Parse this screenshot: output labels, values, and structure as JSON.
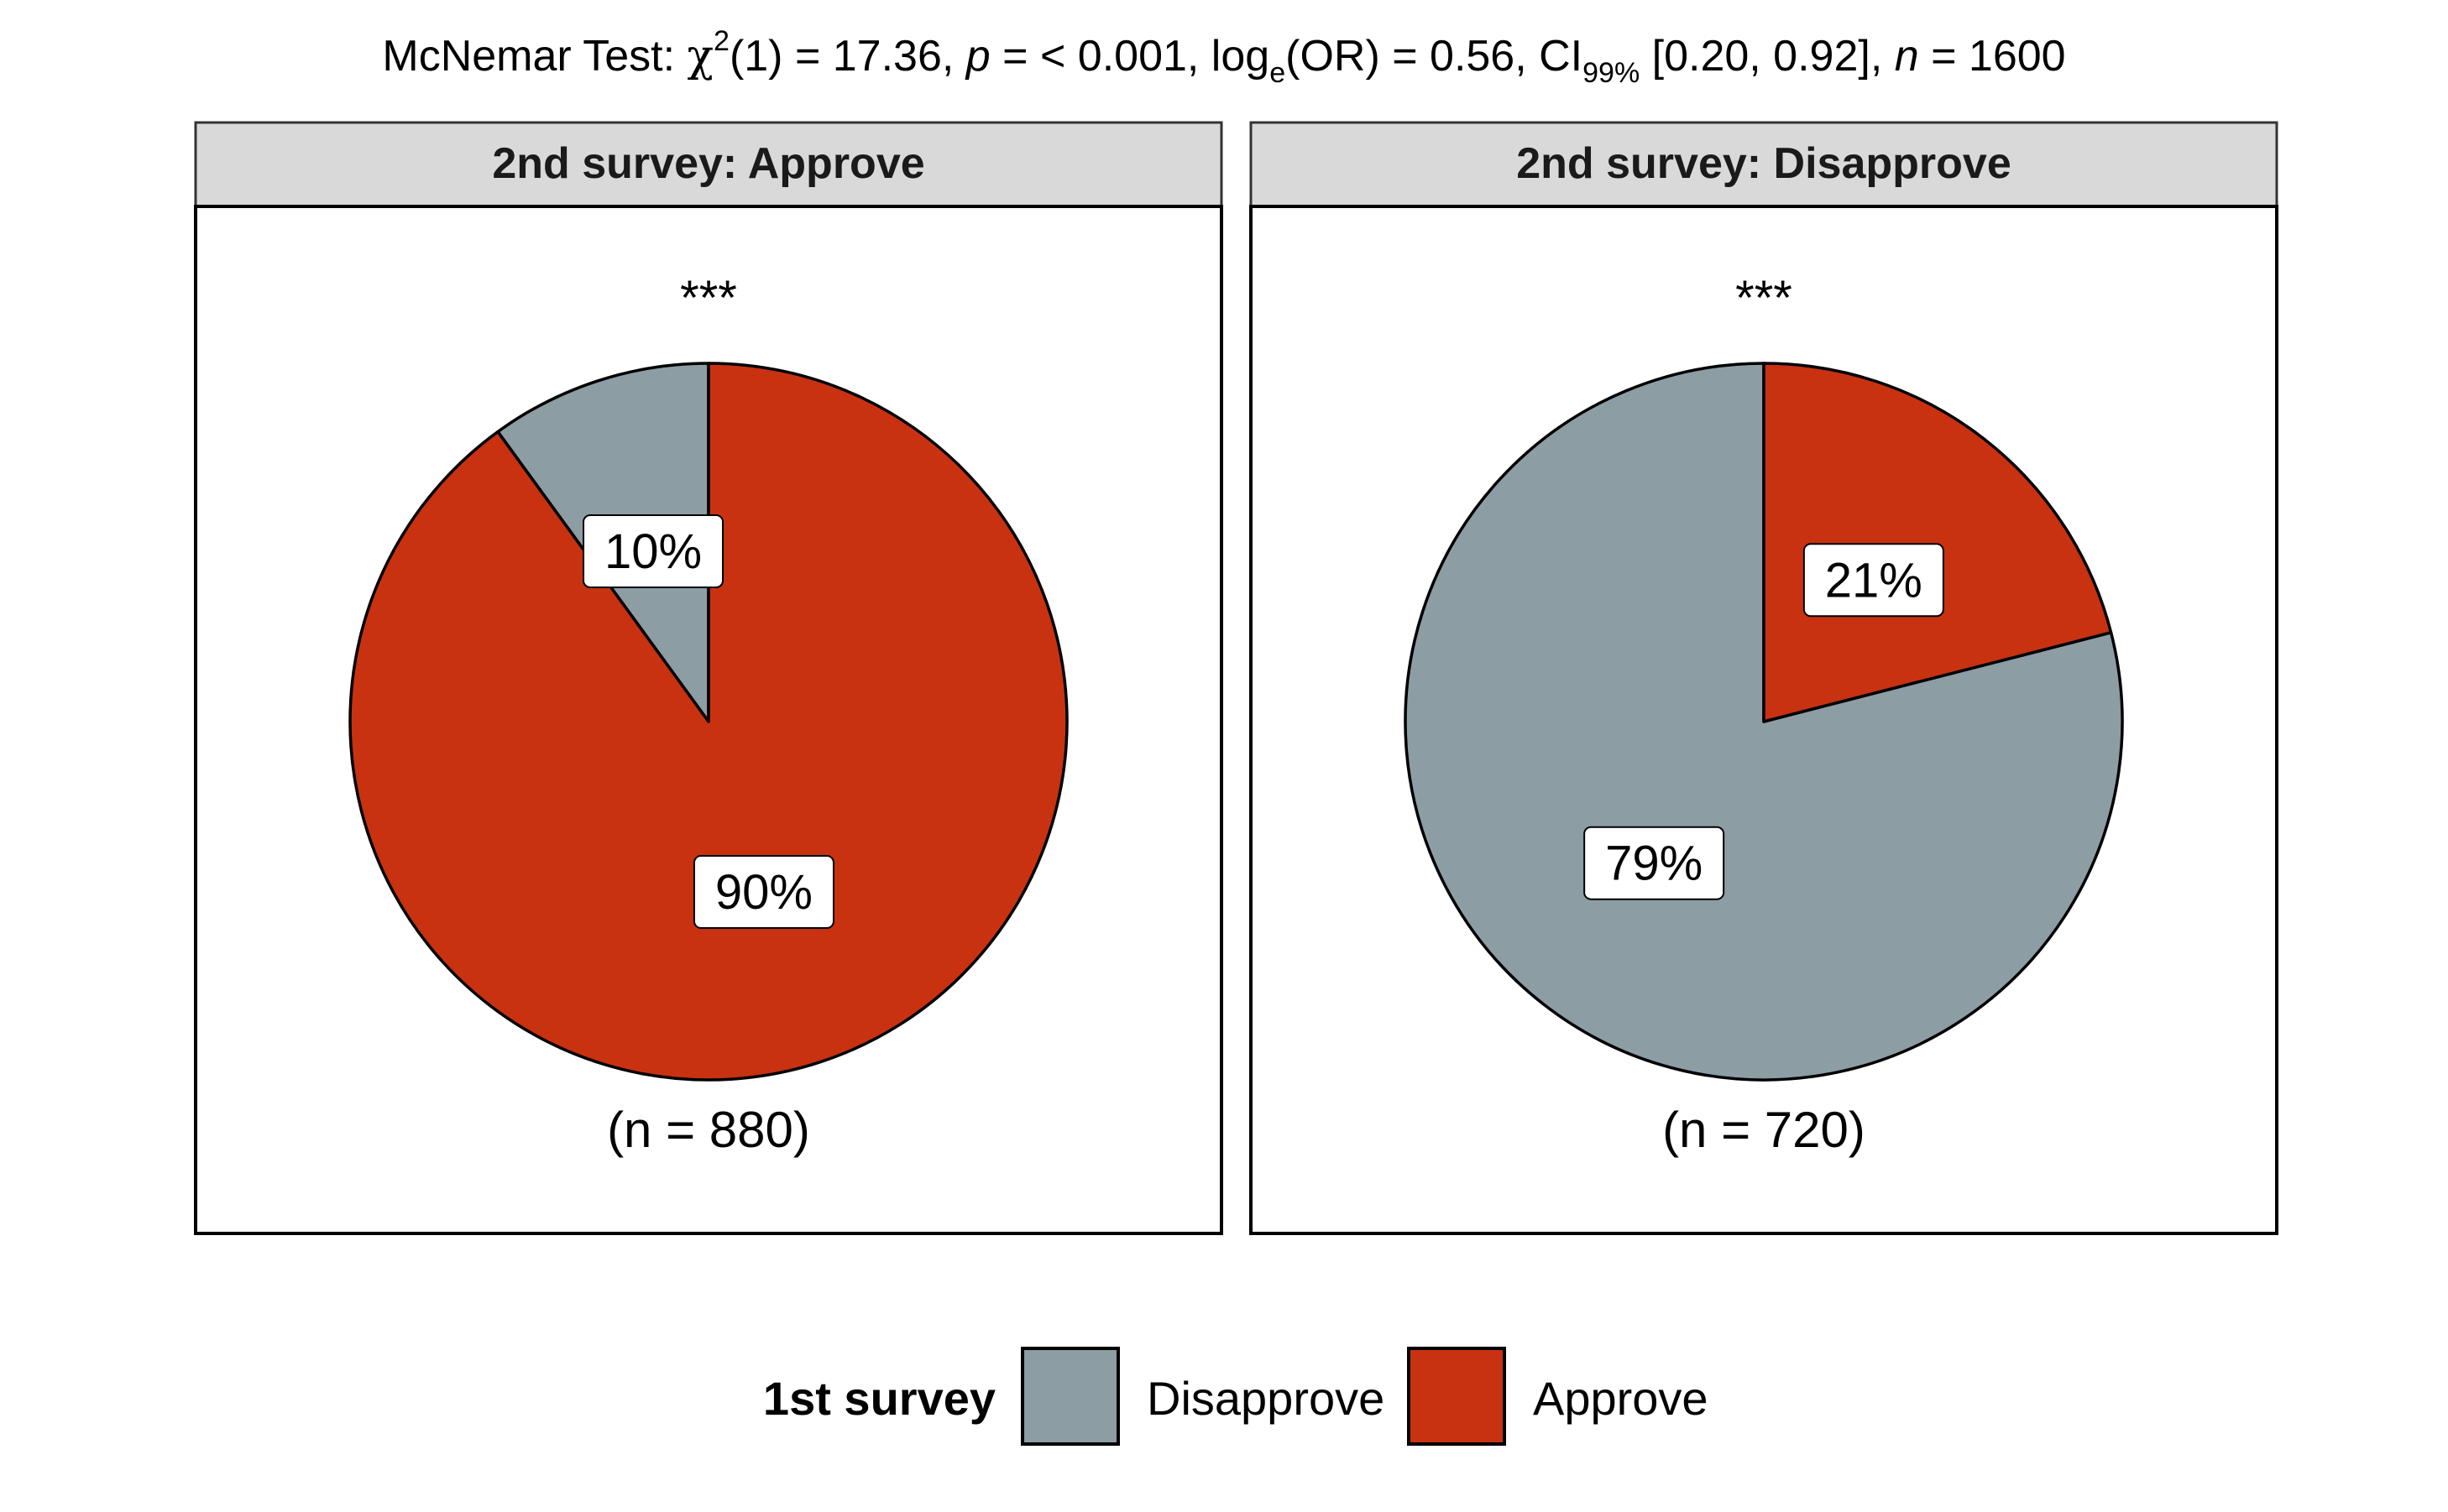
{
  "subtitle": {
    "prefix": "McNemar Test: ",
    "chi": "χ",
    "chi_sup": "2",
    "df_part": "(1) = 17.36, ",
    "p_label": "p",
    "p_part": " = < 0.001, log",
    "log_sub": "e",
    "or_part": "(OR) = 0.56, CI",
    "ci_sub": "99%",
    "ci_part": " [0.20, 0.92], ",
    "n_label": "n",
    "n_part": " = 1600"
  },
  "colors": {
    "Disapprove": "#8C9DA4",
    "Approve": "#C83210",
    "strip": "#D9D9D9"
  },
  "chart_data": {
    "type": "pie",
    "facet_variable": "2nd survey",
    "legend": {
      "title": "1st survey",
      "position": "bottom",
      "entries": [
        "Disapprove",
        "Approve"
      ]
    },
    "panels": [
      {
        "strip_label": "2nd survey: Approve",
        "significance": "***",
        "n_label": "(n = 880)",
        "slices": [
          {
            "category": "Disapprove",
            "value": 10,
            "label": "10%"
          },
          {
            "category": "Approve",
            "value": 90,
            "label": "90%"
          }
        ]
      },
      {
        "strip_label": "2nd survey: Disapprove",
        "significance": "***",
        "n_label": "(n = 720)",
        "slices": [
          {
            "category": "Disapprove",
            "value": 79,
            "label": "79%"
          },
          {
            "category": "Approve",
            "value": 21,
            "label": "21%"
          }
        ]
      }
    ]
  }
}
